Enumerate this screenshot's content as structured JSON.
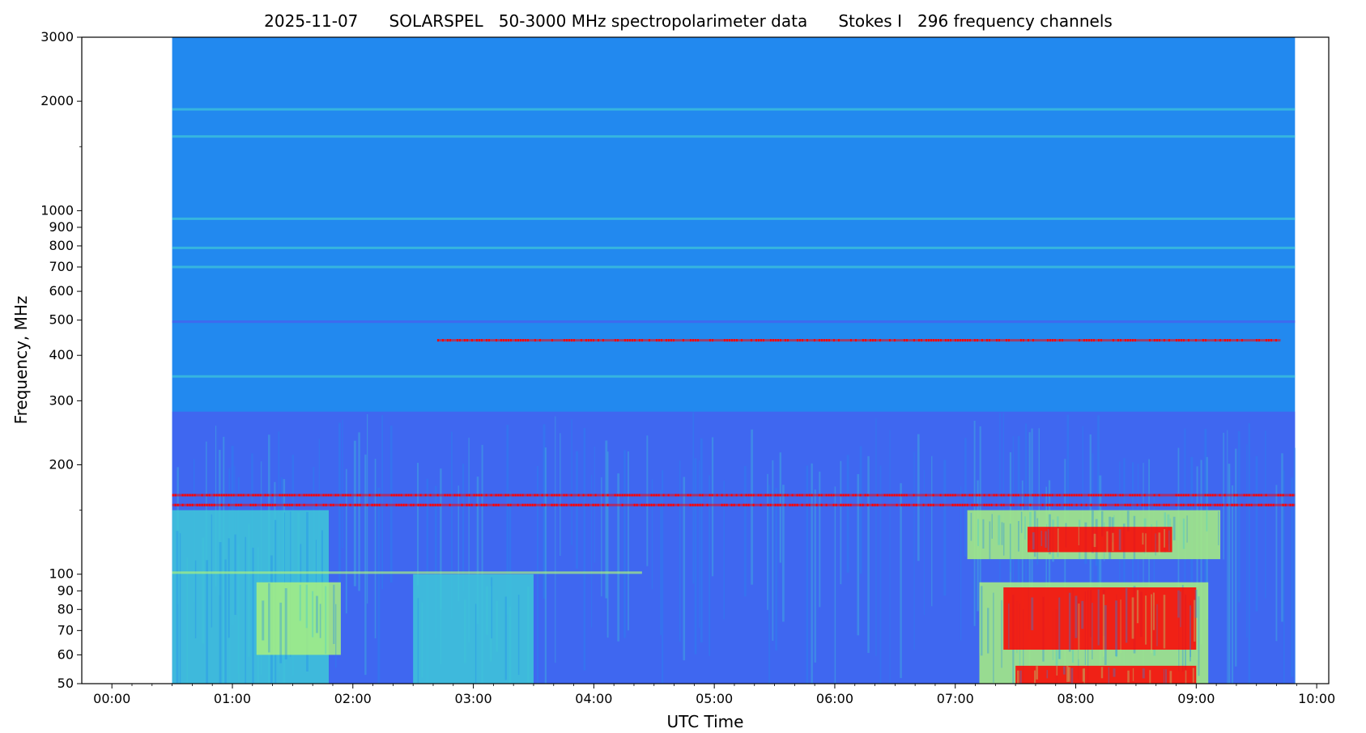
{
  "chart_data": {
    "type": "heatmap",
    "title": "2025-11-07      SOLARSPEL   50-3000 MHz spectropolarimeter data      Stokes I   296 frequency channels",
    "xlabel": "UTC Time",
    "ylabel": "Frequency, MHz",
    "x_range_hours": [
      -0.25,
      10.1
    ],
    "data_start_hours": 0.5,
    "data_end_hours": 9.82,
    "ylim": [
      50,
      3000
    ],
    "y_scale": "log",
    "x_ticks": [
      {
        "value": 0,
        "label": "00:00"
      },
      {
        "value": 1,
        "label": "01:00"
      },
      {
        "value": 2,
        "label": "02:00"
      },
      {
        "value": 3,
        "label": "03:00"
      },
      {
        "value": 4,
        "label": "04:00"
      },
      {
        "value": 5,
        "label": "05:00"
      },
      {
        "value": 6,
        "label": "06:00"
      },
      {
        "value": 7,
        "label": "07:00"
      },
      {
        "value": 8,
        "label": "08:00"
      },
      {
        "value": 9,
        "label": "09:00"
      },
      {
        "value": 10,
        "label": "10:00"
      }
    ],
    "y_ticks": [
      {
        "value": 50,
        "label": "50"
      },
      {
        "value": 60,
        "label": "60"
      },
      {
        "value": 70,
        "label": "70"
      },
      {
        "value": 80,
        "label": "80"
      },
      {
        "value": 90,
        "label": "90"
      },
      {
        "value": 100,
        "label": "100"
      },
      {
        "value": 200,
        "label": "200"
      },
      {
        "value": 300,
        "label": "300"
      },
      {
        "value": 400,
        "label": "400"
      },
      {
        "value": 500,
        "label": "500"
      },
      {
        "value": 600,
        "label": "600"
      },
      {
        "value": 700,
        "label": "700"
      },
      {
        "value": 800,
        "label": "800"
      },
      {
        "value": 900,
        "label": "900"
      },
      {
        "value": 1000,
        "label": "1000"
      },
      {
        "value": 2000,
        "label": "2000"
      },
      {
        "value": 3000,
        "label": "3000"
      }
    ],
    "y_minor_ticks": [
      150,
      1500
    ],
    "colormap": "jet",
    "colors": {
      "background": "#2289ef",
      "quiet_low": "#4a5cf0",
      "enhanced": "#3ec8d8",
      "bright": "#a8f080",
      "intense": "#ff0000"
    },
    "bands": [
      {
        "f": 1900,
        "t0": 0.5,
        "t1": 9.82,
        "level": "enhanced"
      },
      {
        "f": 1600,
        "t0": 0.5,
        "t1": 9.82,
        "level": "enhanced"
      },
      {
        "f": 950,
        "t0": 0.5,
        "t1": 9.82,
        "level": "enhanced"
      },
      {
        "f": 790,
        "t0": 0.5,
        "t1": 9.82,
        "level": "enhanced"
      },
      {
        "f": 700,
        "t0": 0.5,
        "t1": 9.82,
        "level": "enhanced"
      },
      {
        "f": 495,
        "t0": 0.5,
        "t1": 9.82,
        "level": "quiet_low"
      },
      {
        "f": 440,
        "t0": 2.7,
        "t1": 9.7,
        "level": "intense"
      },
      {
        "f": 350,
        "t0": 0.5,
        "t1": 9.82,
        "level": "enhanced"
      },
      {
        "f": 165,
        "t0": 0.5,
        "t1": 9.82,
        "level": "intense"
      },
      {
        "f": 155,
        "t0": 0.5,
        "t1": 9.82,
        "level": "intense"
      },
      {
        "f": 101,
        "t0": 0.5,
        "t1": 4.4,
        "level": "bright"
      }
    ],
    "regions": [
      {
        "t0": 0.5,
        "t1": 9.82,
        "f0": 50,
        "f1": 280,
        "level": "quiet_low"
      },
      {
        "t0": 0.5,
        "t1": 1.8,
        "f0": 50,
        "f1": 150,
        "level": "enhanced"
      },
      {
        "t0": 1.2,
        "t1": 1.9,
        "f0": 60,
        "f1": 95,
        "level": "bright"
      },
      {
        "t0": 2.5,
        "t1": 3.5,
        "f0": 50,
        "f1": 100,
        "level": "enhanced"
      },
      {
        "t0": 7.1,
        "t1": 9.2,
        "f0": 110,
        "f1": 150,
        "level": "bright"
      },
      {
        "t0": 7.6,
        "t1": 8.8,
        "f0": 115,
        "f1": 135,
        "level": "intense"
      },
      {
        "t0": 7.2,
        "t1": 9.1,
        "f0": 50,
        "f1": 95,
        "level": "bright"
      },
      {
        "t0": 7.4,
        "t1": 9.0,
        "f0": 62,
        "f1": 92,
        "level": "intense"
      },
      {
        "t0": 7.5,
        "t1": 9.0,
        "f0": 50,
        "f1": 56,
        "level": "intense"
      }
    ]
  }
}
